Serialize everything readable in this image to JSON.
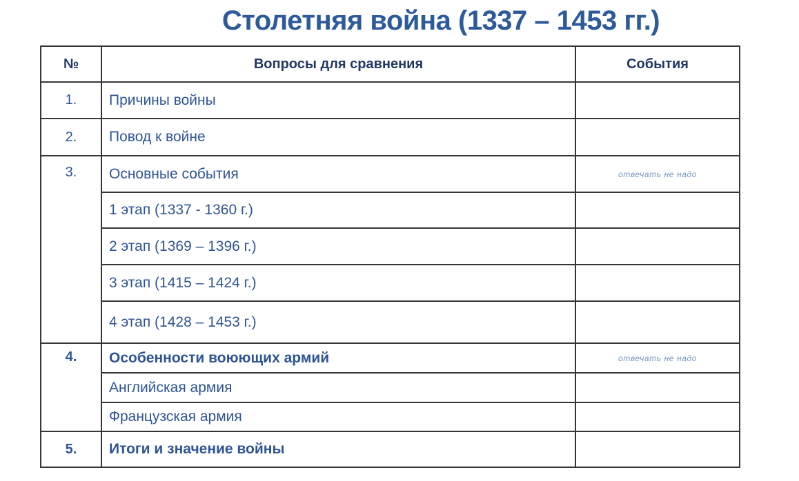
{
  "title": "Столетняя война (1337 – 1453 гг.)",
  "table": {
    "headers": {
      "number": "№",
      "question": "Вопросы для сравнения",
      "events": "События"
    },
    "groups": [
      {
        "num": "1.",
        "items": [
          {
            "text": "Причины войны",
            "note": ""
          }
        ]
      },
      {
        "num": "2.",
        "items": [
          {
            "text": "Повод к войне",
            "note": ""
          }
        ]
      },
      {
        "num": "3.",
        "items": [
          {
            "text": "Основные события",
            "note": "отвечать не надо"
          },
          {
            "text": "1 этап (1337 - 1360 г.)",
            "note": ""
          },
          {
            "text": "2 этап (1369 – 1396 г.)",
            "note": ""
          },
          {
            "text": "3 этап (1415 – 1424 г.)",
            "note": ""
          },
          {
            "text": "4 этап (1428 – 1453 г.)",
            "note": ""
          }
        ]
      },
      {
        "num": "4.",
        "items": [
          {
            "text": "Особенности воюющих армий",
            "note": "отвечать не надо"
          },
          {
            "text": "Английская армия",
            "note": ""
          },
          {
            "text": "Французская армия",
            "note": ""
          }
        ]
      },
      {
        "num": "5.",
        "items": [
          {
            "text": "Итоги и значение войны",
            "note": ""
          }
        ]
      }
    ]
  },
  "colors": {
    "title_text": "#2d5a9b",
    "header_text": "#1f3864",
    "body_text": "#2e5496",
    "note_text": "#7396c5",
    "border": "#363636",
    "background": "#ffffff"
  }
}
